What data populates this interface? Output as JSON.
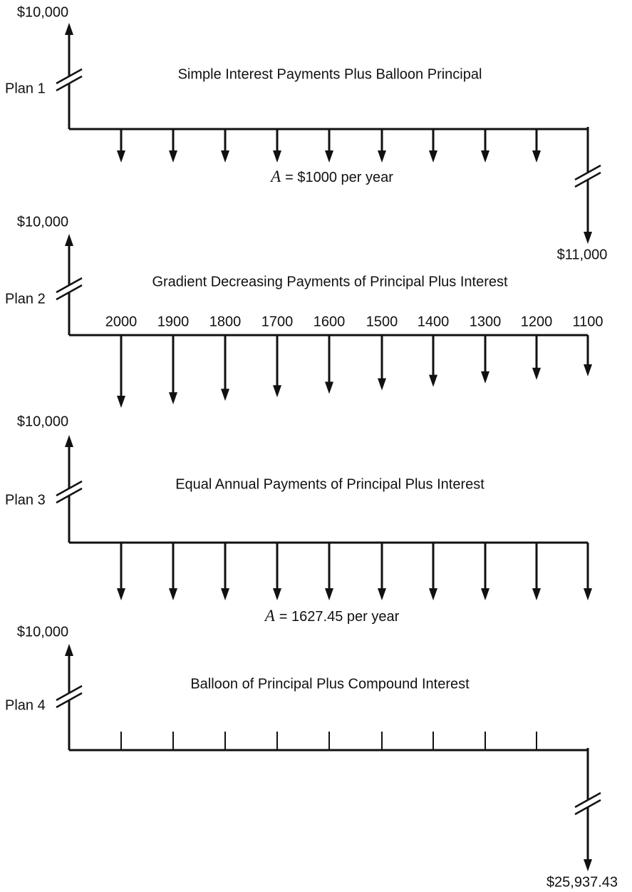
{
  "plans": [
    {
      "label": "Plan 1",
      "receipt": "$10,000",
      "title": "Simple Interest Payments Plus Balloon Principal",
      "note": {
        "symbol": "A",
        "text": "= $1000 per year"
      },
      "final": "$11,000"
    },
    {
      "label": "Plan 2",
      "receipt": "$10,000",
      "title": "Gradient Decreasing Payments of Principal Plus Interest",
      "payments": [
        2000,
        1900,
        1800,
        1700,
        1600,
        1500,
        1400,
        1300,
        1200,
        1100
      ]
    },
    {
      "label": "Plan 3",
      "receipt": "$10,000",
      "title": "Equal Annual Payments of Principal Plus Interest",
      "note": {
        "symbol": "A",
        "text": "= 1627.45 per year"
      }
    },
    {
      "label": "Plan 4",
      "receipt": "$10,000",
      "title": "Balloon of Principal Plus Compound Interest",
      "final": "$25,937.43"
    }
  ]
}
